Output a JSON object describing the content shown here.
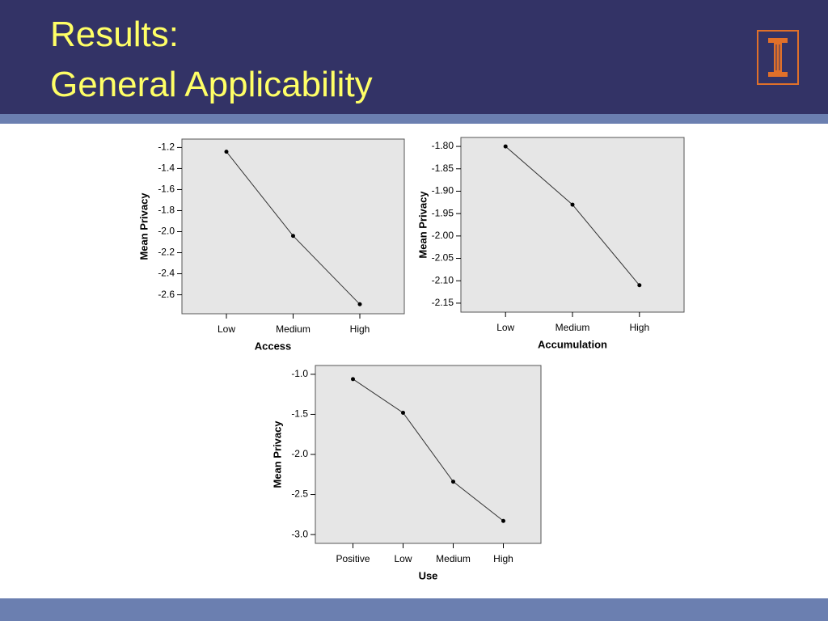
{
  "title": [
    "Results:",
    "General Applicability"
  ],
  "chart_data": [
    {
      "type": "line",
      "categories": [
        "Low",
        "Medium",
        "High"
      ],
      "values": [
        -1.24,
        -2.04,
        -2.69
      ],
      "x_label": "Access",
      "y_label": "Mean Privacy",
      "color": "#333333",
      "ylim": [
        -2.78,
        -1.12
      ],
      "yticks": [
        -1.2,
        -1.4,
        -1.6,
        -1.8,
        {
          "value": -2.0,
          "label": "-2.0"
        },
        -2.2,
        -2.4,
        -2.6
      ]
    },
    {
      "type": "line",
      "categories": [
        "Low",
        "Medium",
        "High"
      ],
      "values": [
        -1.8,
        -1.93,
        -2.11
      ],
      "x_label": "Accumulation",
      "y_label": "Mean Privacy",
      "color": "#333333",
      "ylim": [
        -2.17,
        -1.78
      ],
      "yticks": [
        {
          "value": -1.8,
          "label": "-1.80"
        },
        -1.85,
        {
          "value": -1.9,
          "label": "-1.90"
        },
        -1.95,
        {
          "value": -2.0,
          "label": "-2.00"
        },
        -2.05,
        {
          "value": -2.1,
          "label": "-2.10"
        },
        -2.15
      ]
    },
    {
      "type": "line",
      "categories": [
        "Positive",
        "Low",
        "Medium",
        "High"
      ],
      "values": [
        -1.06,
        -1.48,
        -2.34,
        -2.83
      ],
      "x_label": "Use",
      "y_label": "Mean Privacy",
      "color": "#333333",
      "ylim": [
        -3.11,
        -0.89
      ],
      "yticks": [
        {
          "value": -1.0,
          "label": "-1.0"
        },
        -1.5,
        {
          "value": -2.0,
          "label": "-2.0"
        },
        -2.5,
        {
          "value": -3.0,
          "label": "-3.0"
        }
      ]
    }
  ]
}
